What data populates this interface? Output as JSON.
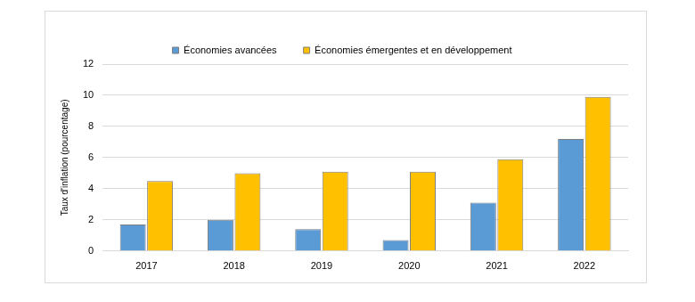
{
  "chart_data": {
    "type": "bar",
    "y_label": "Taux d'inflation (pourcentage)",
    "categories": [
      "2017",
      "2018",
      "2019",
      "2020",
      "2021",
      "2022"
    ],
    "series": [
      {
        "name": "Économies avancées",
        "color": "#5b9bd5",
        "values": [
          1.7,
          2.0,
          1.4,
          0.7,
          3.1,
          7.2
        ]
      },
      {
        "name": "Économies émergentes et en développement",
        "color": "#ffc000",
        "values": [
          4.5,
          5.0,
          5.1,
          5.1,
          5.9,
          9.9
        ]
      }
    ],
    "ylim": [
      0,
      12
    ],
    "yticks": [
      0,
      2,
      4,
      6,
      8,
      10,
      12
    ],
    "grid": true,
    "legend": "top"
  }
}
